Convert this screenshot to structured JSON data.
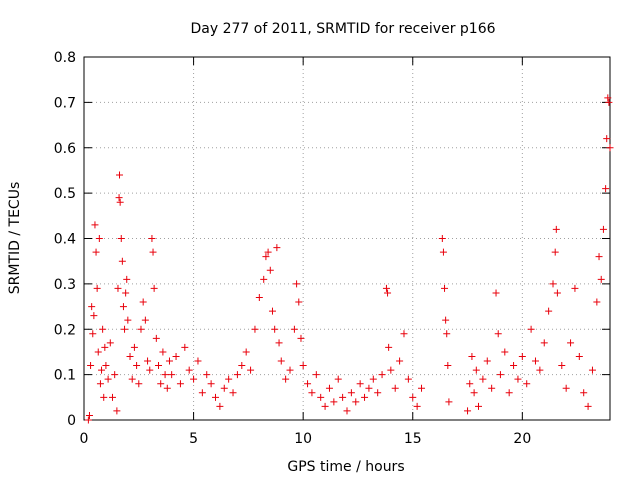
{
  "chart_data": {
    "type": "scatter",
    "title": "Day 277 of 2011, SRMTID for receiver p166",
    "xlabel": "GPS time / hours",
    "ylabel": "SRMTID / TECUs",
    "xlim": [
      0,
      24
    ],
    "ylim": [
      0,
      0.8
    ],
    "xticks": [
      0,
      5,
      10,
      15,
      20
    ],
    "yticks": [
      0,
      0.1,
      0.2,
      0.3,
      0.4,
      0.5,
      0.6,
      0.7,
      0.8
    ],
    "xtick_labels": [
      "0",
      "5",
      "10",
      "15",
      "20"
    ],
    "ytick_labels": [
      "0",
      "0.1",
      "0.2",
      "0.3",
      "0.4",
      "0.5",
      "0.6",
      "0.7",
      "0.8"
    ],
    "grid": true,
    "marker": "+",
    "color": "#e8000b",
    "series": [
      {
        "name": "SRMTID",
        "points": [
          [
            0.2,
            0.0
          ],
          [
            0.25,
            0.01
          ],
          [
            0.3,
            0.12
          ],
          [
            0.35,
            0.25
          ],
          [
            0.4,
            0.19
          ],
          [
            0.45,
            0.23
          ],
          [
            0.5,
            0.43
          ],
          [
            0.55,
            0.37
          ],
          [
            0.6,
            0.29
          ],
          [
            0.65,
            0.15
          ],
          [
            0.7,
            0.4
          ],
          [
            0.75,
            0.08
          ],
          [
            0.8,
            0.11
          ],
          [
            0.85,
            0.2
          ],
          [
            0.9,
            0.05
          ],
          [
            0.95,
            0.16
          ],
          [
            1.0,
            0.12
          ],
          [
            1.1,
            0.09
          ],
          [
            1.2,
            0.17
          ],
          [
            1.3,
            0.05
          ],
          [
            1.4,
            0.1
          ],
          [
            1.5,
            0.02
          ],
          [
            1.55,
            0.29
          ],
          [
            1.6,
            0.49
          ],
          [
            1.62,
            0.54
          ],
          [
            1.65,
            0.48
          ],
          [
            1.7,
            0.4
          ],
          [
            1.75,
            0.35
          ],
          [
            1.8,
            0.25
          ],
          [
            1.85,
            0.2
          ],
          [
            1.9,
            0.28
          ],
          [
            1.95,
            0.31
          ],
          [
            2.0,
            0.22
          ],
          [
            2.1,
            0.14
          ],
          [
            2.2,
            0.09
          ],
          [
            2.3,
            0.16
          ],
          [
            2.4,
            0.12
          ],
          [
            2.5,
            0.08
          ],
          [
            2.6,
            0.2
          ],
          [
            2.7,
            0.26
          ],
          [
            2.8,
            0.22
          ],
          [
            2.9,
            0.13
          ],
          [
            3.0,
            0.11
          ],
          [
            3.1,
            0.4
          ],
          [
            3.15,
            0.37
          ],
          [
            3.2,
            0.29
          ],
          [
            3.3,
            0.18
          ],
          [
            3.4,
            0.12
          ],
          [
            3.5,
            0.08
          ],
          [
            3.6,
            0.15
          ],
          [
            3.7,
            0.1
          ],
          [
            3.8,
            0.07
          ],
          [
            3.9,
            0.13
          ],
          [
            4.0,
            0.1
          ],
          [
            4.2,
            0.14
          ],
          [
            4.4,
            0.08
          ],
          [
            4.6,
            0.16
          ],
          [
            4.8,
            0.11
          ],
          [
            5.0,
            0.09
          ],
          [
            5.2,
            0.13
          ],
          [
            5.4,
            0.06
          ],
          [
            5.6,
            0.1
          ],
          [
            5.8,
            0.08
          ],
          [
            6.0,
            0.05
          ],
          [
            6.2,
            0.03
          ],
          [
            6.4,
            0.07
          ],
          [
            6.6,
            0.09
          ],
          [
            6.8,
            0.06
          ],
          [
            7.0,
            0.1
          ],
          [
            7.2,
            0.12
          ],
          [
            7.4,
            0.15
          ],
          [
            7.6,
            0.11
          ],
          [
            7.8,
            0.2
          ],
          [
            8.0,
            0.27
          ],
          [
            8.2,
            0.31
          ],
          [
            8.3,
            0.36
          ],
          [
            8.4,
            0.37
          ],
          [
            8.5,
            0.33
          ],
          [
            8.6,
            0.24
          ],
          [
            8.7,
            0.2
          ],
          [
            8.8,
            0.38
          ],
          [
            8.9,
            0.17
          ],
          [
            9.0,
            0.13
          ],
          [
            9.2,
            0.09
          ],
          [
            9.4,
            0.11
          ],
          [
            9.6,
            0.2
          ],
          [
            9.7,
            0.3
          ],
          [
            9.8,
            0.26
          ],
          [
            9.9,
            0.18
          ],
          [
            10.0,
            0.12
          ],
          [
            10.2,
            0.08
          ],
          [
            10.4,
            0.06
          ],
          [
            10.6,
            0.1
          ],
          [
            10.8,
            0.05
          ],
          [
            11.0,
            0.03
          ],
          [
            11.2,
            0.07
          ],
          [
            11.4,
            0.04
          ],
          [
            11.6,
            0.09
          ],
          [
            11.8,
            0.05
          ],
          [
            12.0,
            0.02
          ],
          [
            12.2,
            0.06
          ],
          [
            12.4,
            0.04
          ],
          [
            12.6,
            0.08
          ],
          [
            12.8,
            0.05
          ],
          [
            13.0,
            0.07
          ],
          [
            13.2,
            0.09
          ],
          [
            13.4,
            0.06
          ],
          [
            13.6,
            0.1
          ],
          [
            13.8,
            0.29
          ],
          [
            13.85,
            0.28
          ],
          [
            13.9,
            0.16
          ],
          [
            14.0,
            0.11
          ],
          [
            14.2,
            0.07
          ],
          [
            14.4,
            0.13
          ],
          [
            14.6,
            0.19
          ],
          [
            14.8,
            0.09
          ],
          [
            15.0,
            0.05
          ],
          [
            15.2,
            0.03
          ],
          [
            15.4,
            0.07
          ],
          [
            16.35,
            0.4
          ],
          [
            16.4,
            0.37
          ],
          [
            16.45,
            0.29
          ],
          [
            16.5,
            0.22
          ],
          [
            16.55,
            0.19
          ],
          [
            16.6,
            0.12
          ],
          [
            16.65,
            0.04
          ],
          [
            17.5,
            0.02
          ],
          [
            17.6,
            0.08
          ],
          [
            17.7,
            0.14
          ],
          [
            17.8,
            0.06
          ],
          [
            17.9,
            0.11
          ],
          [
            18.0,
            0.03
          ],
          [
            18.2,
            0.09
          ],
          [
            18.4,
            0.13
          ],
          [
            18.6,
            0.07
          ],
          [
            18.8,
            0.28
          ],
          [
            18.9,
            0.19
          ],
          [
            19.0,
            0.1
          ],
          [
            19.2,
            0.15
          ],
          [
            19.4,
            0.06
          ],
          [
            19.6,
            0.12
          ],
          [
            19.8,
            0.09
          ],
          [
            20.0,
            0.14
          ],
          [
            20.2,
            0.08
          ],
          [
            20.4,
            0.2
          ],
          [
            20.6,
            0.13
          ],
          [
            20.8,
            0.11
          ],
          [
            21.0,
            0.17
          ],
          [
            21.2,
            0.24
          ],
          [
            21.4,
            0.3
          ],
          [
            21.5,
            0.37
          ],
          [
            21.55,
            0.42
          ],
          [
            21.6,
            0.28
          ],
          [
            21.8,
            0.12
          ],
          [
            22.0,
            0.07
          ],
          [
            22.2,
            0.17
          ],
          [
            22.4,
            0.29
          ],
          [
            22.6,
            0.14
          ],
          [
            22.8,
            0.06
          ],
          [
            23.0,
            0.03
          ],
          [
            23.2,
            0.11
          ],
          [
            23.4,
            0.26
          ],
          [
            23.5,
            0.36
          ],
          [
            23.6,
            0.31
          ],
          [
            23.7,
            0.42
          ],
          [
            23.8,
            0.51
          ],
          [
            23.85,
            0.62
          ],
          [
            23.9,
            0.71
          ],
          [
            23.95,
            0.7
          ],
          [
            24.0,
            0.6
          ]
        ]
      }
    ]
  }
}
